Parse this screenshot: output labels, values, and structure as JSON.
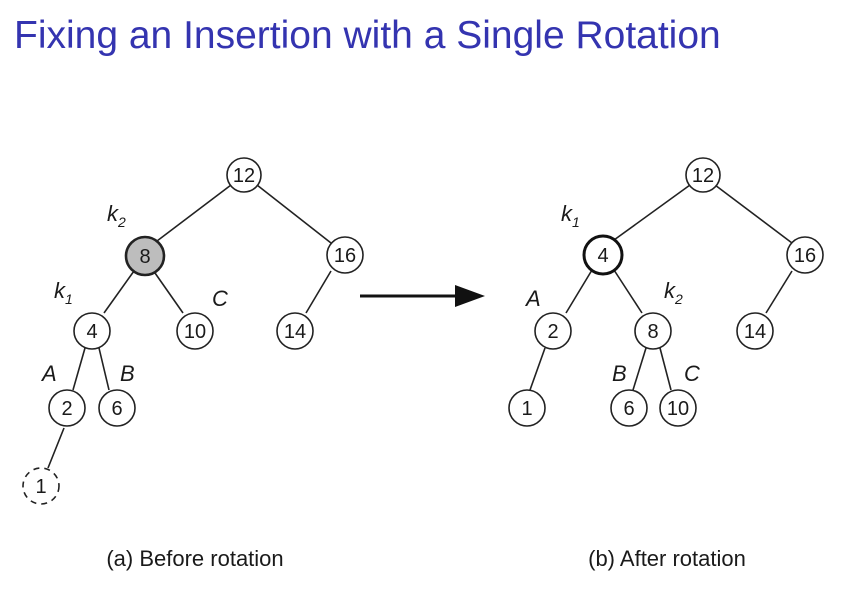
{
  "title": "Fixing an Insertion with a Single Rotation",
  "colors": {
    "title": "#3434b0",
    "highlight_fill": "#bdbdbd",
    "stroke": "#222222"
  },
  "before": {
    "caption": "(a) Before rotation",
    "nodes": {
      "n12": "12",
      "n8": "8",
      "n16": "16",
      "n4": "4",
      "n10": "10",
      "n14": "14",
      "n2": "2",
      "n6": "6",
      "n1": "1"
    },
    "labels": {
      "k2": {
        "letter": "k",
        "sub": "2"
      },
      "k1": {
        "letter": "k",
        "sub": "1"
      },
      "A": "A",
      "B": "B",
      "C": "C"
    }
  },
  "after": {
    "caption": "(b) After rotation",
    "nodes": {
      "n12": "12",
      "n4": "4",
      "n16": "16",
      "n2": "2",
      "n8": "8",
      "n14": "14",
      "n1": "1",
      "n6": "6",
      "n10": "10"
    },
    "labels": {
      "k1": {
        "letter": "k",
        "sub": "1"
      },
      "k2": {
        "letter": "k",
        "sub": "2"
      },
      "A": "A",
      "B": "B",
      "C": "C"
    }
  },
  "arrow_icon": "right-arrow-icon"
}
